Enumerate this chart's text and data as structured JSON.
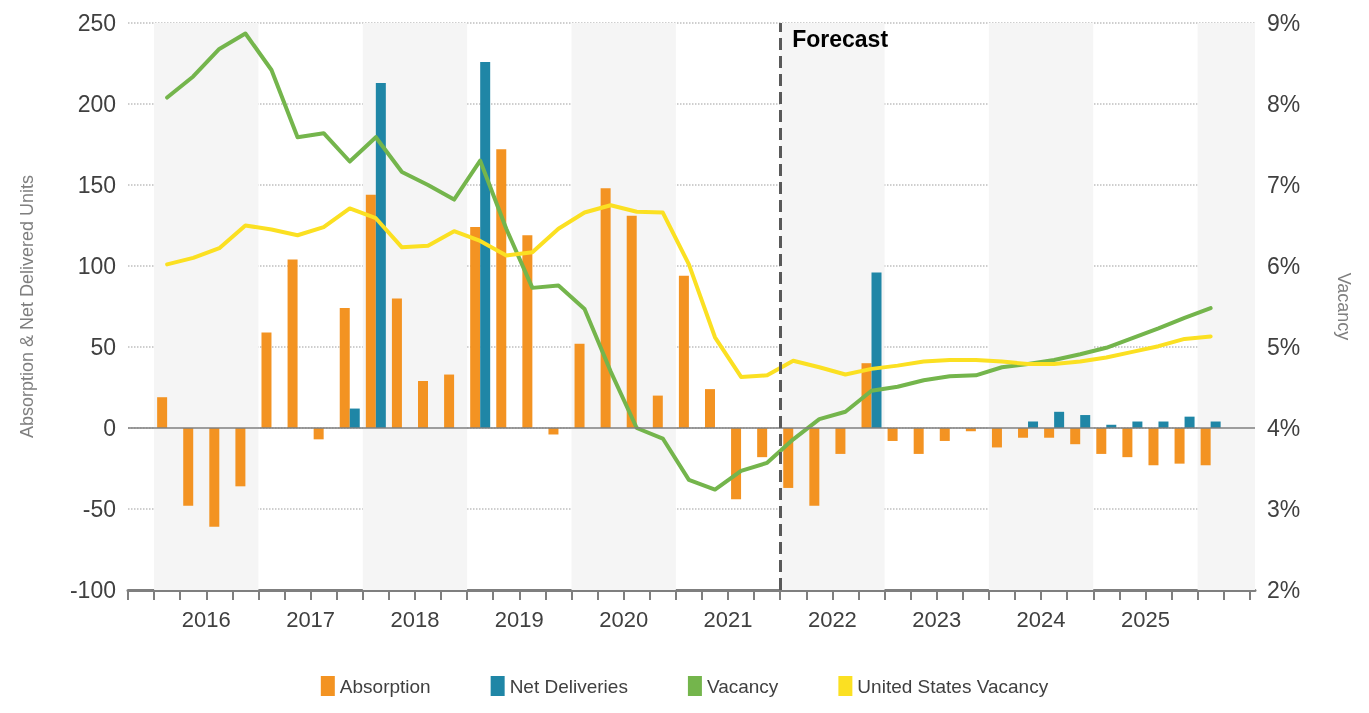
{
  "chart_data": {
    "type": "bar",
    "ylabel": "Absorption & Net Delivered Units",
    "y2label": "Vacancy",
    "x": [
      2016.125,
      2016.375,
      2016.625,
      2016.875,
      2017.125,
      2017.375,
      2017.625,
      2017.875,
      2018.125,
      2018.375,
      2018.625,
      2018.875,
      2019.125,
      2019.375,
      2019.625,
      2019.875,
      2020.125,
      2020.375,
      2020.625,
      2020.875,
      2021.125,
      2021.375,
      2021.625,
      2021.875,
      2022.125,
      2022.375,
      2022.625,
      2022.875,
      2023.125,
      2023.375,
      2023.625,
      2023.875,
      2024.125,
      2024.375,
      2024.625,
      2024.875,
      2025.125,
      2025.375,
      2025.625,
      2025.875,
      2026.125
    ],
    "series": [
      {
        "name": "Absorption",
        "color": "#f39322",
        "values": [
          19,
          -48,
          -61,
          -36,
          59,
          104,
          -7,
          74,
          144,
          80,
          29,
          33,
          124,
          172,
          119,
          -4,
          52,
          148,
          131,
          20,
          94,
          24,
          -44,
          -18,
          -37,
          -48,
          -16,
          40,
          -8,
          -16,
          -8,
          -2,
          -12,
          -6,
          -6,
          -10,
          -16,
          -18,
          -23,
          -22,
          -23
        ]
      },
      {
        "name": "Net Deliveries",
        "color": "#1f86a6",
        "values": [
          0,
          0,
          0,
          0,
          0,
          0,
          0,
          12,
          213,
          0,
          0,
          0,
          226,
          0,
          0,
          0,
          0,
          0,
          0,
          0,
          0,
          0,
          0,
          0,
          0,
          0,
          0,
          96,
          0,
          0,
          0,
          0,
          0,
          4,
          10,
          8,
          2,
          4,
          4,
          7,
          4
        ]
      },
      {
        "name": "Vacancy",
        "type": "line",
        "axis": "y2",
        "color": "#74b54c",
        "values": [
          8.08,
          8.34,
          8.68,
          8.87,
          8.42,
          7.59,
          7.64,
          7.29,
          7.59,
          7.16,
          7.0,
          6.82,
          7.3,
          6.46,
          5.73,
          5.76,
          5.47,
          4.7,
          4.0,
          3.87,
          3.36,
          3.24,
          3.47,
          3.57,
          3.86,
          4.11,
          4.2,
          4.46,
          4.51,
          4.59,
          4.64,
          4.65,
          4.75,
          4.79,
          4.84,
          4.91,
          4.99,
          5.11,
          5.23,
          5.36,
          5.48
        ]
      },
      {
        "name": "United States Vacancy",
        "type": "line",
        "axis": "y2",
        "color": "#fbe022",
        "values": [
          6.02,
          6.1,
          6.22,
          6.5,
          6.45,
          6.38,
          6.48,
          6.71,
          6.59,
          6.23,
          6.25,
          6.43,
          6.31,
          6.13,
          6.17,
          6.46,
          6.66,
          6.75,
          6.67,
          6.66,
          6.02,
          5.12,
          4.63,
          4.65,
          4.83,
          4.75,
          4.66,
          4.73,
          4.77,
          4.82,
          4.84,
          4.84,
          4.82,
          4.79,
          4.79,
          4.82,
          4.87,
          4.94,
          5.01,
          5.1,
          5.13
        ]
      }
    ],
    "xlim": [
      2015.75,
      2026.55
    ],
    "xticks": [
      {
        "value": 2015.75,
        "label": null
      },
      {
        "value": 2016,
        "label": null
      },
      {
        "value": 2016.25,
        "label": null
      },
      {
        "value": 2016.5,
        "label": "2016"
      },
      {
        "value": 2016.75,
        "label": null
      },
      {
        "value": 2017,
        "label": null
      },
      {
        "value": 2017.25,
        "label": null
      },
      {
        "value": 2017.5,
        "label": "2017"
      },
      {
        "value": 2017.75,
        "label": null
      },
      {
        "value": 2018,
        "label": null
      },
      {
        "value": 2018.25,
        "label": null
      },
      {
        "value": 2018.5,
        "label": "2018"
      },
      {
        "value": 2018.75,
        "label": null
      },
      {
        "value": 2019,
        "label": null
      },
      {
        "value": 2019.25,
        "label": null
      },
      {
        "value": 2019.5,
        "label": "2019"
      },
      {
        "value": 2019.75,
        "label": null
      },
      {
        "value": 2020,
        "label": null
      },
      {
        "value": 2020.25,
        "label": null
      },
      {
        "value": 2020.5,
        "label": "2020"
      },
      {
        "value": 2020.75,
        "label": null
      },
      {
        "value": 2021,
        "label": null
      },
      {
        "value": 2021.25,
        "label": null
      },
      {
        "value": 2021.5,
        "label": "2021"
      },
      {
        "value": 2021.75,
        "label": null
      },
      {
        "value": 2022,
        "label": null
      },
      {
        "value": 2022.25,
        "label": null
      },
      {
        "value": 2022.5,
        "label": "2022"
      },
      {
        "value": 2022.75,
        "label": null
      },
      {
        "value": 2023,
        "label": null
      },
      {
        "value": 2023.25,
        "label": null
      },
      {
        "value": 2023.5,
        "label": "2023"
      },
      {
        "value": 2023.75,
        "label": null
      },
      {
        "value": 2024,
        "label": null
      },
      {
        "value": 2024.25,
        "label": null
      },
      {
        "value": 2024.5,
        "label": "2024"
      },
      {
        "value": 2024.75,
        "label": null
      },
      {
        "value": 2025,
        "label": null
      },
      {
        "value": 2025.25,
        "label": null
      },
      {
        "value": 2025.5,
        "label": "2025"
      },
      {
        "value": 2025.75,
        "label": null
      },
      {
        "value": 2026,
        "label": null
      },
      {
        "value": 2026.25,
        "label": null
      },
      {
        "value": 2026.5,
        "label": null
      }
    ],
    "ylim": [
      -100,
      250
    ],
    "yticks": [
      -100,
      -50,
      0,
      50,
      100,
      150,
      200,
      250
    ],
    "y2lim": [
      2,
      9
    ],
    "y2ticks": [
      {
        "value": 2,
        "label": "2%"
      },
      {
        "value": 3,
        "label": "3%"
      },
      {
        "value": 4,
        "label": "4%"
      },
      {
        "value": 5,
        "label": "5%"
      },
      {
        "value": 6,
        "label": "6%"
      },
      {
        "value": 7,
        "label": "7%"
      },
      {
        "value": 8,
        "label": "8%"
      },
      {
        "value": 9,
        "label": "9%"
      }
    ],
    "ref_lines": [
      {
        "axis": "y",
        "value": 0,
        "label": null,
        "color": "#7f7f7f",
        "line_style": "solid"
      },
      {
        "axis": "x",
        "value": 2022,
        "label": "Forecast",
        "color": "#595959",
        "line_style": "dashed"
      }
    ],
    "bands": [
      {
        "axis": "x",
        "from": 2016,
        "to": 2017,
        "label": null,
        "color": "#f5f5f5"
      },
      {
        "axis": "x",
        "from": 2018,
        "to": 2019,
        "label": null,
        "color": "#f5f5f5"
      },
      {
        "axis": "x",
        "from": 2020,
        "to": 2021,
        "label": null,
        "color": "#f5f5f5"
      },
      {
        "axis": "x",
        "from": 2022,
        "to": 2023,
        "label": null,
        "color": "#f5f5f5"
      },
      {
        "axis": "x",
        "from": 2024,
        "to": 2025,
        "label": null,
        "color": "#f5f5f5"
      },
      {
        "axis": "x",
        "from": 2026,
        "to": 2026.55,
        "label": null,
        "color": "#f5f5f5"
      }
    ],
    "grid": "y",
    "legend": "bottom",
    "marker": "none"
  }
}
